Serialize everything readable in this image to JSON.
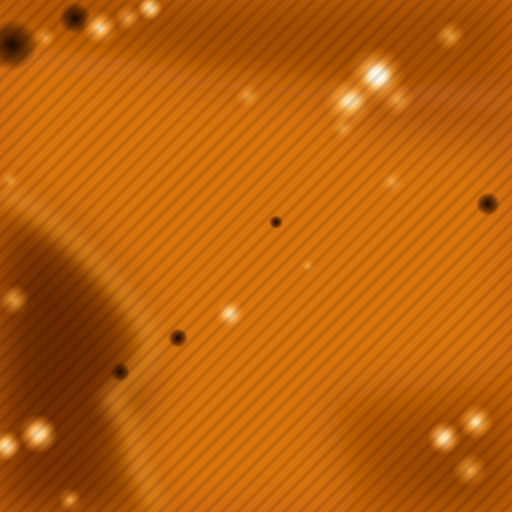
{
  "image": {
    "kind": "stm-topography-scan",
    "colors": {
      "base": "#c45e06",
      "bright": "#e98f22",
      "highlight": "#fff6dc",
      "dark": "#4a1d00",
      "mid_dark": "#7a3500"
    }
  }
}
